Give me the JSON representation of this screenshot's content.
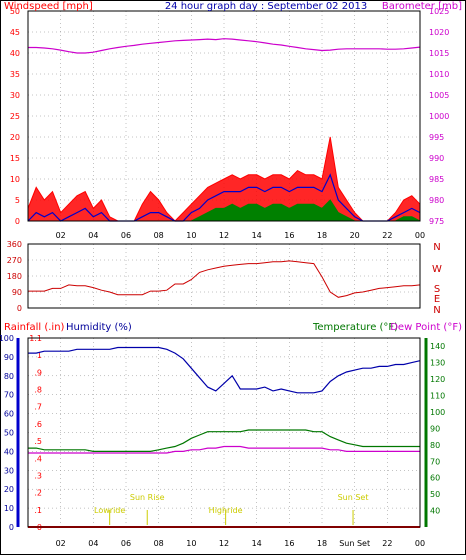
{
  "colors": {
    "windspeed": "#ff0000",
    "gust_fill": "#ff0000",
    "avg_wind": "#0000cc",
    "min_wind": "#008000",
    "barometer": "#cc00cc",
    "direction": "#cc0000",
    "humidity": "#0000aa",
    "temperature": "#007700",
    "dewpoint": "#cc00cc",
    "rainfall": "#ff0000",
    "rainfall_axis": "#0000cc",
    "temp_axis": "#007700",
    "grid": "#888888",
    "frame": "#000000",
    "sun": "#cccc00"
  },
  "chart_data": [
    {
      "type": "line",
      "title": "24 hour graph day : September 02 2013",
      "left_axis_label": "Windspeed [mph]",
      "right_axis_label": "Barometer [mb]",
      "x_ticks": [
        "02",
        "04",
        "06",
        "08",
        "10",
        "12",
        "14",
        "16",
        "18",
        "20",
        "22",
        "00"
      ],
      "ylim_left": [
        0,
        50
      ],
      "y_ticks_left": [
        "0",
        "5",
        "10",
        "15",
        "20",
        "25",
        "30",
        "35",
        "40",
        "45",
        "50"
      ],
      "ylim_right": [
        975,
        1025
      ],
      "y_ticks_right": [
        "975",
        "980",
        "985",
        "990",
        "995",
        "1000",
        "1005",
        "1010",
        "1015",
        "1020",
        "1025"
      ],
      "grid": true,
      "x": [
        0,
        0.5,
        1,
        1.5,
        2,
        2.5,
        3,
        3.5,
        4,
        4.5,
        5,
        5.5,
        6,
        6.5,
        7,
        7.5,
        8,
        8.5,
        9,
        9.5,
        10,
        10.5,
        11,
        11.5,
        12,
        12.5,
        13,
        13.5,
        14,
        14.5,
        15,
        15.5,
        16,
        16.5,
        17,
        17.5,
        18,
        18.5,
        19,
        19.5,
        20,
        20.5,
        21,
        21.5,
        22,
        22.5,
        23,
        23.5,
        24
      ],
      "series": [
        {
          "name": "Windspeed",
          "values": [
            3,
            8,
            5,
            7,
            2,
            4,
            6,
            7,
            3,
            5,
            1,
            0,
            0,
            0,
            4,
            7,
            5,
            2,
            0,
            2,
            4,
            6,
            8,
            9,
            10,
            11,
            10,
            11,
            11,
            10,
            11,
            11,
            10,
            12,
            11,
            11,
            10,
            20,
            8,
            5,
            2,
            0,
            0,
            0,
            0,
            2,
            5,
            6,
            4
          ]
        },
        {
          "name": "Avg wind",
          "values": [
            0,
            2,
            1,
            2,
            0,
            1,
            2,
            3,
            1,
            2,
            0,
            0,
            0,
            0,
            1,
            2,
            2,
            1,
            0,
            0,
            2,
            3,
            5,
            6,
            7,
            7,
            7,
            8,
            8,
            7,
            8,
            8,
            7,
            8,
            8,
            8,
            7,
            11,
            5,
            3,
            1,
            0,
            0,
            0,
            0,
            1,
            2,
            3,
            2
          ]
        },
        {
          "name": "Min wind",
          "values": [
            0,
            0,
            0,
            0,
            0,
            0,
            0,
            0,
            0,
            0,
            0,
            0,
            0,
            0,
            0,
            0,
            0,
            0,
            0,
            0,
            0,
            1,
            2,
            3,
            3,
            4,
            3,
            4,
            4,
            3,
            4,
            4,
            3,
            4,
            4,
            4,
            3,
            5,
            2,
            1,
            0,
            0,
            0,
            0,
            0,
            0,
            1,
            1,
            0
          ]
        },
        {
          "name": "Barometer",
          "values": [
            1016.3,
            1016.3,
            1016.2,
            1016.0,
            1015.7,
            1015.3,
            1015.0,
            1015.0,
            1015.2,
            1015.6,
            1016.0,
            1016.3,
            1016.6,
            1016.8,
            1017.1,
            1017.3,
            1017.5,
            1017.7,
            1017.9,
            1018.0,
            1018.1,
            1018.2,
            1018.3,
            1018.2,
            1018.4,
            1018.3,
            1018.1,
            1017.9,
            1017.7,
            1017.4,
            1017.1,
            1016.9,
            1016.6,
            1016.3,
            1016.0,
            1015.8,
            1015.6,
            1015.7,
            1015.9,
            1016.0,
            1016.0,
            1016.0,
            1016.0,
            1016.0,
            1015.9,
            1015.9,
            1016.0,
            1016.2,
            1016.4
          ]
        }
      ]
    },
    {
      "type": "line",
      "title": "",
      "ylim": [
        0,
        360
      ],
      "y_ticks": [
        "0",
        "90",
        "180",
        "270",
        "360"
      ],
      "compass_labels": [
        "N",
        "W",
        "S",
        "E",
        "N"
      ],
      "x": [
        0,
        0.5,
        1,
        1.5,
        2,
        2.5,
        3,
        3.5,
        4,
        4.5,
        5,
        5.5,
        6,
        6.5,
        7,
        7.5,
        8,
        8.5,
        9,
        9.5,
        10,
        10.5,
        11,
        11.5,
        12,
        12.5,
        13,
        13.5,
        14,
        14.5,
        15,
        15.5,
        16,
        16.5,
        17,
        17.5,
        18,
        18.5,
        19,
        19.5,
        20,
        20.5,
        21,
        21.5,
        22,
        22.5,
        23,
        23.5,
        24
      ],
      "series": [
        {
          "name": "Wind direction",
          "values": [
            95,
            95,
            95,
            110,
            110,
            130,
            125,
            125,
            115,
            100,
            90,
            75,
            75,
            75,
            75,
            95,
            95,
            100,
            135,
            135,
            160,
            200,
            215,
            225,
            235,
            240,
            245,
            250,
            250,
            255,
            260,
            260,
            265,
            260,
            255,
            250,
            175,
            90,
            60,
            70,
            85,
            90,
            100,
            110,
            115,
            120,
            125,
            125,
            130
          ]
        }
      ]
    },
    {
      "type": "line",
      "title": "",
      "labels": {
        "rainfall": "Rainfall (.in)",
        "humidity": "Humidity (%)",
        "temperature": "Temperature (°F)",
        "dewpoint": "Dew Point (°F)"
      },
      "ylim_humidity": [
        0,
        100
      ],
      "y_ticks_humidity": [
        "0",
        "10",
        "20",
        "30",
        "40",
        "50",
        "60",
        "70",
        "80",
        "90",
        "100"
      ],
      "ylim_rain": [
        0,
        1.1
      ],
      "y_ticks_rain": [
        "0",
        ".1",
        ".2",
        ".3",
        ".4",
        ".5",
        ".6",
        ".7",
        ".8",
        ".9",
        "1",
        "1.1"
      ],
      "ylim_temp": [
        30,
        145
      ],
      "y_ticks_temp": [
        "40",
        "50",
        "60",
        "70",
        "80",
        "90",
        "100",
        "110",
        "120",
        "130",
        "140"
      ],
      "x_ticks": [
        "02",
        "04",
        "06",
        "08",
        "10",
        "12",
        "14",
        "16",
        "18",
        "Sun Set",
        "22",
        "00"
      ],
      "sun_events": [
        {
          "label": "Lowride",
          "hour": 5
        },
        {
          "label": "Sun Rise",
          "hour": 7.3
        },
        {
          "label": "Highride",
          "hour": 12.1
        },
        {
          "label": "Sun Set",
          "hour": 19.9
        }
      ],
      "x": [
        0,
        0.5,
        1,
        1.5,
        2,
        2.5,
        3,
        3.5,
        4,
        4.5,
        5,
        5.5,
        6,
        6.5,
        7,
        7.5,
        8,
        8.5,
        9,
        9.5,
        10,
        10.5,
        11,
        11.5,
        12,
        12.5,
        13,
        13.5,
        14,
        14.5,
        15,
        15.5,
        16,
        16.5,
        17,
        17.5,
        18,
        18.5,
        19,
        19.5,
        20,
        20.5,
        21,
        21.5,
        22,
        22.5,
        23,
        23.5,
        24
      ],
      "series": [
        {
          "name": "Humidity",
          "values": [
            92,
            92,
            93,
            93,
            93,
            93,
            94,
            94,
            94,
            94,
            94,
            95,
            95,
            95,
            95,
            95,
            95,
            94,
            92,
            89,
            84,
            79,
            74,
            72,
            76,
            80,
            73,
            73,
            73,
            74,
            72,
            73,
            72,
            71,
            71,
            71,
            72,
            77,
            80,
            82,
            83,
            84,
            84,
            85,
            85,
            86,
            86,
            87,
            88
          ]
        },
        {
          "name": "Rainfall",
          "values": [
            0,
            0,
            0,
            0,
            0,
            0,
            0,
            0,
            0,
            0,
            0,
            0,
            0,
            0,
            0,
            0,
            0,
            0,
            0,
            0,
            0,
            0,
            0,
            0,
            0,
            0,
            0,
            0,
            0,
            0,
            0,
            0,
            0,
            0,
            0,
            0,
            0,
            0,
            0,
            0,
            0,
            0,
            0,
            0,
            0,
            0,
            0,
            0,
            0
          ]
        },
        {
          "name": "Temperature",
          "values": [
            78,
            78,
            77,
            77,
            77,
            77,
            77,
            77,
            76,
            76,
            76,
            76,
            76,
            76,
            76,
            76,
            77,
            78,
            79,
            81,
            84,
            86,
            88,
            88,
            88,
            88,
            88,
            89,
            89,
            89,
            89,
            89,
            89,
            89,
            89,
            88,
            88,
            85,
            83,
            81,
            80,
            79,
            79,
            79,
            79,
            79,
            79,
            79,
            79
          ]
        },
        {
          "name": "Dew Point",
          "values": [
            75,
            75,
            75,
            75,
            75,
            75,
            75,
            75,
            75,
            75,
            75,
            75,
            75,
            75,
            75,
            75,
            75,
            75,
            76,
            76,
            77,
            77,
            78,
            78,
            79,
            79,
            79,
            78,
            78,
            78,
            78,
            78,
            78,
            78,
            78,
            78,
            78,
            77,
            77,
            76,
            76,
            76,
            76,
            76,
            76,
            76,
            76,
            76,
            76
          ]
        }
      ]
    }
  ]
}
